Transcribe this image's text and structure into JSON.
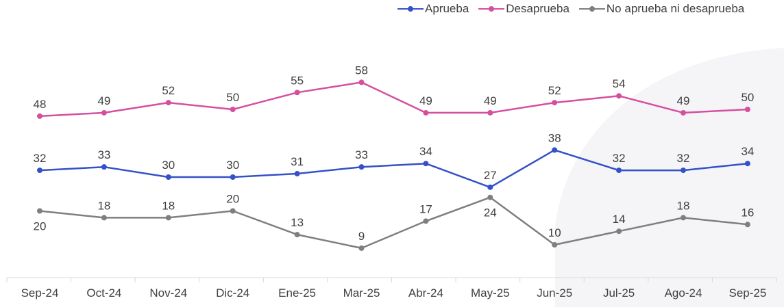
{
  "chart_data": {
    "type": "line",
    "categories": [
      "Sep-24",
      "Oct-24",
      "Nov-24",
      "Dic-24",
      "Ene-25",
      "Mar-25",
      "Abr-24",
      "May-25",
      "Jun-25",
      "Jul-25",
      "Ago-24",
      "Sep-25"
    ],
    "series": [
      {
        "name": "Aprueba",
        "color": "#3551C8",
        "values": [
          32,
          33,
          30,
          30,
          31,
          33,
          34,
          27,
          38,
          32,
          32,
          34
        ]
      },
      {
        "name": "Desaprueba",
        "color": "#D64F9F",
        "values": [
          48,
          49,
          52,
          50,
          55,
          58,
          49,
          49,
          52,
          54,
          49,
          50
        ]
      },
      {
        "name": "No aprueba ni desaprueba",
        "color": "#7F7F7F",
        "values": [
          20,
          18,
          18,
          20,
          13,
          9,
          17,
          24,
          10,
          14,
          18,
          16
        ]
      }
    ],
    "legend_position": "top-right",
    "grid": false,
    "ylim": [
      0,
      70
    ]
  }
}
